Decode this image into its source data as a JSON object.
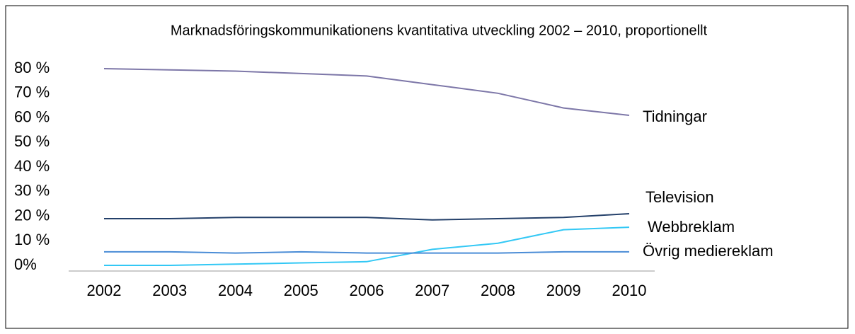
{
  "chart_data": {
    "type": "line",
    "title": "Marknadsföringskommunikationens kvantitativa utveckling 2002 – 2010, proportionellt",
    "categories": [
      "2002",
      "2003",
      "2004",
      "2005",
      "2006",
      "2007",
      "2008",
      "2009",
      "2010"
    ],
    "series": [
      {
        "name": "Tidningar",
        "color": "#7d77a8",
        "values": [
          80,
          79.5,
          79,
          78,
          77,
          73.5,
          70,
          64,
          61
        ]
      },
      {
        "name": "Television",
        "color": "#24406a",
        "values": [
          19,
          19,
          19.5,
          19.5,
          19.5,
          18.5,
          19,
          19.5,
          21
        ]
      },
      {
        "name": "Webbreklam",
        "color": "#33c8f5",
        "values": [
          0,
          0,
          0.5,
          1,
          1.5,
          6.5,
          9,
          14.5,
          15.5
        ]
      },
      {
        "name": "Övrig mediereklam",
        "color": "#4a8cd6",
        "values": [
          5.5,
          5.5,
          5,
          5.5,
          5,
          5,
          5,
          5.5,
          5.5
        ]
      }
    ],
    "ylim": [
      0,
      80
    ],
    "yticks": [
      {
        "value": 0,
        "label": "0%"
      },
      {
        "value": 10,
        "label": "10 %"
      },
      {
        "value": 20,
        "label": "20 %"
      },
      {
        "value": 30,
        "label": "30 %"
      },
      {
        "value": 40,
        "label": "40 %"
      },
      {
        "value": 50,
        "label": "50 %"
      },
      {
        "value": 60,
        "label": "60 %"
      },
      {
        "value": 70,
        "label": "70 %"
      },
      {
        "value": 80,
        "label": "80 %"
      }
    ],
    "grid": false
  }
}
